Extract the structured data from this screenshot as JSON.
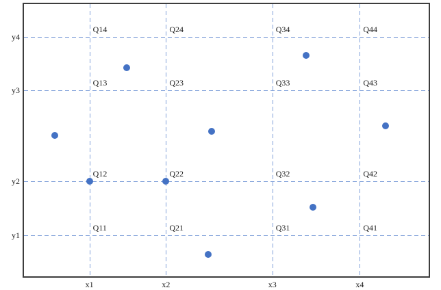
{
  "chart_data": {
    "type": "scatter",
    "title": "",
    "xlabel": "",
    "ylabel": "",
    "legend": null,
    "grid": "dashed",
    "x_gridlines": [
      {
        "label": "x1",
        "pos": 16.19
      },
      {
        "label": "x2",
        "pos": 35.08
      },
      {
        "label": "x3",
        "pos": 61.38
      },
      {
        "label": "x4",
        "pos": 82.97
      }
    ],
    "y_gridlines": [
      {
        "label": "y4",
        "pos": 12.0
      },
      {
        "label": "y3",
        "pos": 31.75
      },
      {
        "label": "y2",
        "pos": 65.0
      },
      {
        "label": "y1",
        "pos": 85.0
      }
    ],
    "quadrant_labels": [
      {
        "label": "Q14",
        "x_line": "x1",
        "y_line": "y4"
      },
      {
        "label": "Q24",
        "x_line": "x2",
        "y_line": "y4"
      },
      {
        "label": "Q34",
        "x_line": "x3",
        "y_line": "y4"
      },
      {
        "label": "Q44",
        "x_line": "x4",
        "y_line": "y4"
      },
      {
        "label": "Q13",
        "x_line": "x1",
        "y_line": "y3"
      },
      {
        "label": "Q23",
        "x_line": "x2",
        "y_line": "y3"
      },
      {
        "label": "Q33",
        "x_line": "x3",
        "y_line": "y3"
      },
      {
        "label": "Q43",
        "x_line": "x4",
        "y_line": "y3"
      },
      {
        "label": "Q12",
        "x_line": "x1",
        "y_line": "y2"
      },
      {
        "label": "Q22",
        "x_line": "x2",
        "y_line": "y2"
      },
      {
        "label": "Q32",
        "x_line": "x3",
        "y_line": "y2"
      },
      {
        "label": "Q42",
        "x_line": "x4",
        "y_line": "y2"
      },
      {
        "label": "Q11",
        "x_line": "x1",
        "y_line": "y1"
      },
      {
        "label": "Q21",
        "x_line": "x2",
        "y_line": "y1"
      },
      {
        "label": "Q31",
        "x_line": "x3",
        "y_line": "y1"
      },
      {
        "label": "Q41",
        "x_line": "x4",
        "y_line": "y1"
      }
    ],
    "points": [
      {
        "x": 25.3,
        "y": 23.25
      },
      {
        "x": 7.59,
        "y": 48.25
      },
      {
        "x": 46.37,
        "y": 46.75
      },
      {
        "x": 69.65,
        "y": 18.75
      },
      {
        "x": 89.38,
        "y": 44.75
      },
      {
        "x": 16.19,
        "y": 65.0
      },
      {
        "x": 35.08,
        "y": 65.0
      },
      {
        "x": 71.33,
        "y": 74.5
      },
      {
        "x": 45.53,
        "y": 92.0
      }
    ],
    "coordinate_note": "positions are percent of plot area, x measured from left edge, y from top edge",
    "style": {
      "point_color": "#4472C4",
      "gridline_color": "#7F9FD9",
      "border_color": "#3D3D3D",
      "label_color": "#1A1A1A",
      "background": "#FFFFFF"
    }
  }
}
